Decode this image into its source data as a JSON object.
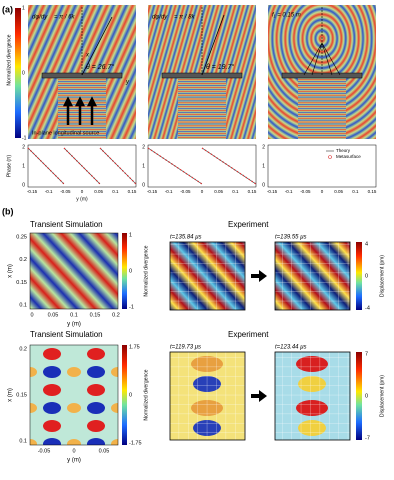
{
  "labels": {
    "a": "(a)",
    "b": "(b)"
  },
  "part_a": {
    "colorbar": {
      "label": "Normalized divergence",
      "ticks": [
        "1",
        "0",
        "-1"
      ]
    },
    "panels": [
      {
        "gradient": "dφ/dy",
        "gradient_value": "= π / 6k",
        "angle": "θ = 26.7°",
        "axis_x": "x",
        "axis_y": "y",
        "source": "In-plane longitudinal source"
      },
      {
        "gradient": "dφ/dy",
        "gradient_value": "= π / 8k",
        "angle": "θ = 19.7°"
      },
      {
        "focus": "f₁ = 0.15 m"
      }
    ],
    "phase": {
      "ylabel": "Phase (π)",
      "xlabel": "y (m)",
      "legend": [
        "Theory",
        "Metasurface"
      ],
      "plots": [
        {
          "yticks": [
            "2",
            "1",
            "0"
          ],
          "xticks": [
            "-0.15",
            "-0.1",
            "-0.05",
            "0",
            "0.05",
            "0.1",
            "0.15"
          ]
        },
        {
          "yticks": [
            "2",
            "1",
            "0"
          ],
          "xticks": [
            "-0.15",
            "-0.1",
            "-0.05",
            "0",
            "0.05",
            "0.1",
            "0.15"
          ]
        },
        {
          "yticks": [
            "2",
            "1",
            "0"
          ],
          "xticks": [
            "-0.15",
            "-0.1",
            "-0.05",
            "0",
            "0.05",
            "0.1",
            "0.15"
          ]
        }
      ]
    }
  },
  "part_b": {
    "rows": [
      {
        "sim_title": "Transient Simulation",
        "exp_title": "Experiment",
        "xlabel": "x (m)",
        "ylabel": "y (m)",
        "xticks": [
          "0.25",
          "0.2",
          "0.15",
          "0.1"
        ],
        "yticks": [
          "0",
          "0.05",
          "0.1",
          "0.15",
          "0.2"
        ],
        "sim_colorbar": {
          "label": "Normalized divergence",
          "ticks": [
            "1",
            "0",
            "-1"
          ]
        },
        "exp_colorbar": {
          "label": "Displacement (pm)",
          "ticks": [
            "4",
            "0",
            "-4"
          ]
        },
        "times": [
          "t=135.84 μs",
          "t=139.55 μs"
        ]
      },
      {
        "sim_title": "Transient Simulation",
        "exp_title": "Experiment",
        "xlabel": "x (m)",
        "ylabel": "y (m)",
        "xticks": [
          "0.2",
          "0.15",
          "0.1"
        ],
        "yticks": [
          "-0.05",
          "0",
          "0.05"
        ],
        "sim_colorbar": {
          "label": "Normalized divergence",
          "ticks": [
            "1.75",
            "0",
            "-1.75"
          ]
        },
        "exp_colorbar": {
          "label": "Displacement (pm)",
          "ticks": [
            "7",
            "0",
            "-7"
          ]
        },
        "times": [
          "t=119.73 μs",
          "t=123.44 μs"
        ]
      }
    ]
  }
}
